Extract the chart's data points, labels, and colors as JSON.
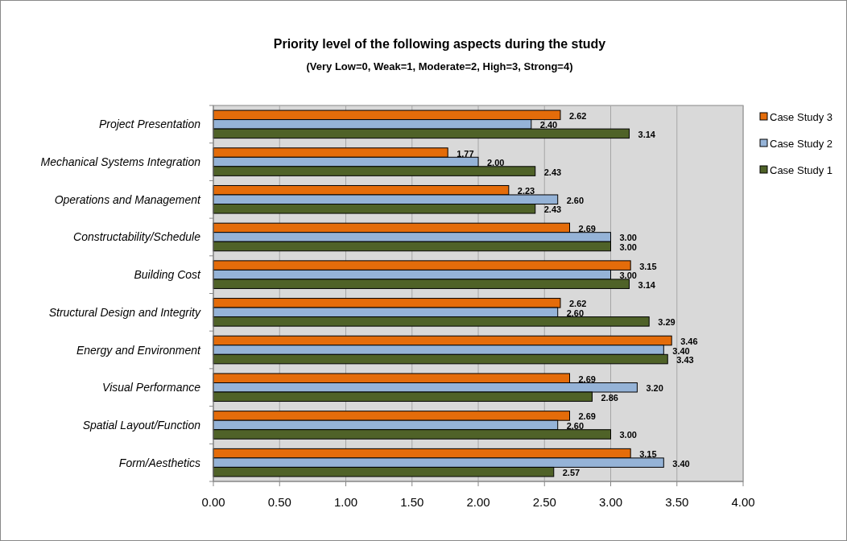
{
  "chart_data": {
    "type": "bar",
    "orientation": "horizontal",
    "title": "Priority level of the following aspects during the study",
    "subtitle": "(Very Low=0, Weak=1, Moderate=2, High=3, Strong=4)",
    "categories": [
      "Project Presentation",
      "Mechanical Systems Integration",
      "Operations and Management",
      "Constructability/Schedule",
      "Building Cost",
      "Structural Design and Integrity",
      "Energy and Environment",
      "Visual Performance",
      "Spatial Layout/Function",
      "Form/Aesthetics"
    ],
    "series": [
      {
        "name": "Case Study 3",
        "color": "#e46c0a",
        "values": [
          2.62,
          1.77,
          2.23,
          2.69,
          3.15,
          2.62,
          3.46,
          2.69,
          2.69,
          3.15
        ],
        "value_labels": [
          "2.62",
          "1.77",
          "2.23",
          "2.69",
          "3.15",
          "2.62",
          "3.46",
          "2.69",
          "2.69",
          "3.15"
        ]
      },
      {
        "name": "Case Study 2",
        "color": "#95b3d7",
        "values": [
          2.4,
          2.0,
          2.6,
          3.0,
          3.0,
          2.6,
          3.4,
          3.2,
          2.6,
          3.4
        ],
        "value_labels": [
          "2.40",
          "2.00",
          "2.60",
          "3.00",
          "3.00",
          "2.60",
          "3.40",
          "3.20",
          "2.60",
          "3.40"
        ]
      },
      {
        "name": "Case Study 1",
        "color": "#4f6228",
        "values": [
          3.14,
          2.43,
          2.43,
          3.0,
          3.14,
          3.29,
          3.43,
          2.86,
          3.0,
          2.57
        ],
        "value_labels": [
          "3.14",
          "2.43",
          "2.43",
          "3.00",
          "3.14",
          "3.29",
          "3.43",
          "2.86",
          "3.00",
          "2.57"
        ]
      }
    ],
    "xlim": [
      0,
      4
    ],
    "xticks": [
      {
        "value": 0,
        "label": "0.00"
      },
      {
        "value": 0.5,
        "label": "0.50"
      },
      {
        "value": 1,
        "label": "1.00"
      },
      {
        "value": 1.5,
        "label": "1.50"
      },
      {
        "value": 2,
        "label": "2.00"
      },
      {
        "value": 2.5,
        "label": "2.50"
      },
      {
        "value": 3,
        "label": "3.00"
      },
      {
        "value": 3.5,
        "label": "3.50"
      },
      {
        "value": 4,
        "label": "4.00"
      }
    ],
    "grid": "x",
    "legend": "right"
  }
}
